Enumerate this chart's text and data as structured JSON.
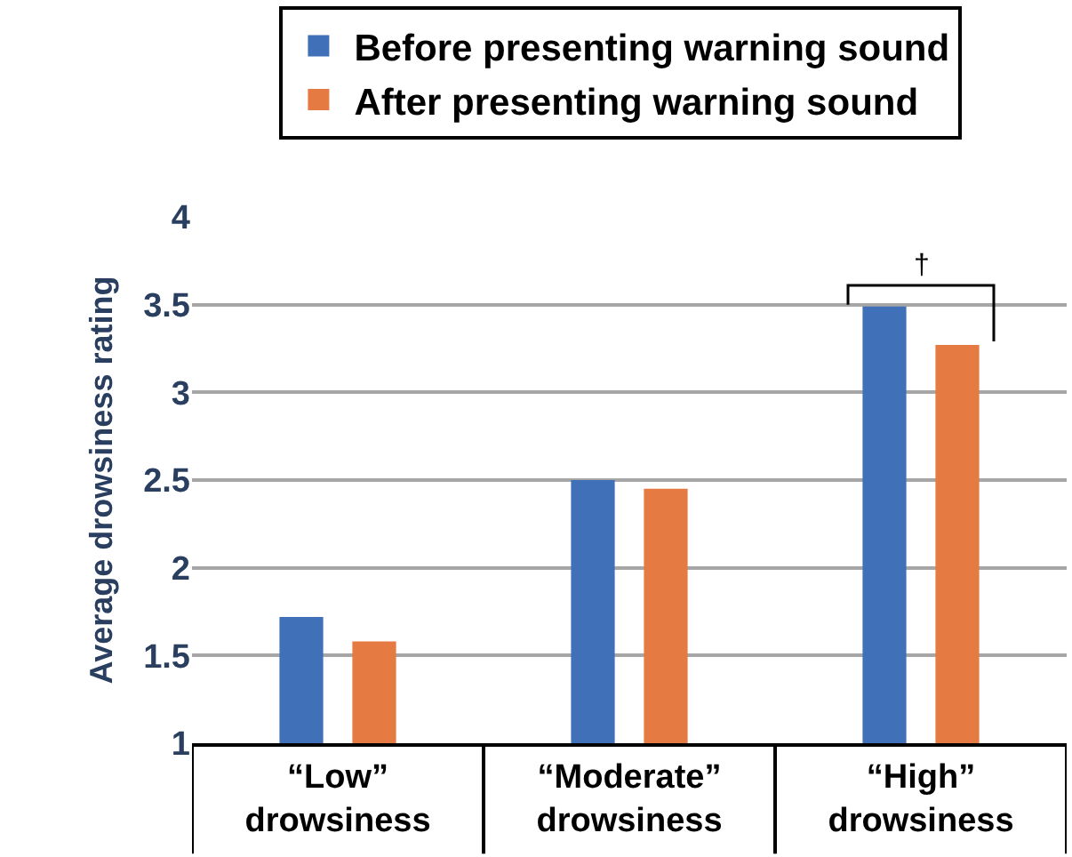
{
  "chart_data": {
    "type": "bar",
    "ylabel": "Average drowsiness rating",
    "categories": [
      "“Low” drowsiness",
      "“Moderate” drowsiness",
      "“High” drowsiness"
    ],
    "series": [
      {
        "name": "Before presenting warning sound",
        "color": "#4070b8",
        "values": [
          1.72,
          2.5,
          3.49
        ]
      },
      {
        "name": "After presenting warning sound",
        "color": "#e57a42",
        "values": [
          1.58,
          2.45,
          3.27
        ]
      }
    ],
    "ylim": [
      1,
      4
    ],
    "yticks": [
      1,
      1.5,
      2,
      2.5,
      3,
      3.5,
      4
    ],
    "grid": "y",
    "legend": "top",
    "annotations": [
      "†"
    ]
  }
}
